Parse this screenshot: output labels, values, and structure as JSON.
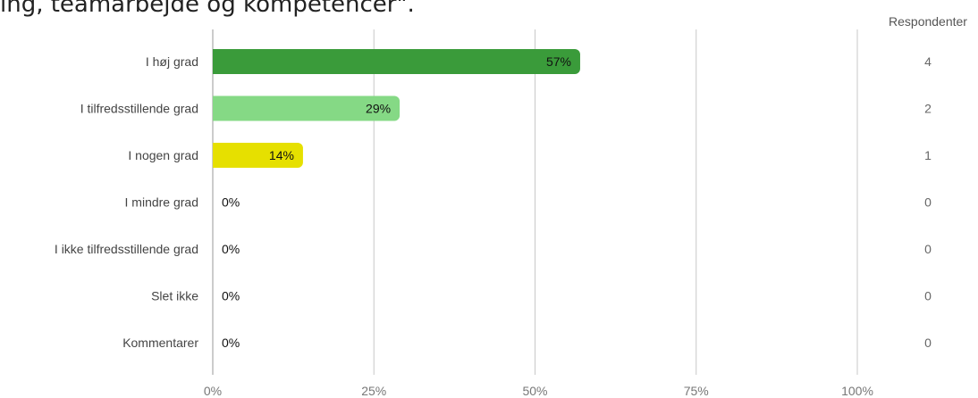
{
  "chart_data": {
    "type": "bar",
    "orientation": "horizontal",
    "title": "ing, teamarbejde og kompetencer\".",
    "categories": [
      "I høj grad",
      "I tilfredsstillende grad",
      "I nogen grad",
      "I mindre grad",
      "I ikke tilfredsstillende grad",
      "Slet ikke",
      "Kommentarer"
    ],
    "values": [
      57,
      29,
      14,
      0,
      0,
      0,
      0
    ],
    "value_labels": [
      "57%",
      "29%",
      "14%",
      "0%",
      "0%",
      "0%",
      "0%"
    ],
    "bar_colors": [
      "#3a9b3a",
      "#85d985",
      "#e6e000",
      "#cccccc",
      "#cccccc",
      "#cccccc",
      "#cccccc"
    ],
    "xlim": [
      0,
      100
    ],
    "xticks": [
      "0%",
      "25%",
      "50%",
      "75%",
      "100%"
    ],
    "grid": true,
    "respondents_header": "Respondenter",
    "respondents": [
      "4",
      "2",
      "1",
      "0",
      "0",
      "0",
      "0"
    ]
  }
}
